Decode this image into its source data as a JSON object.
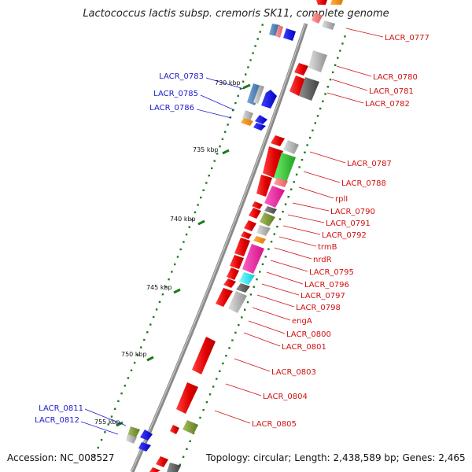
{
  "title": "Lactococcus lactis subsp. cremoris SK11, complete genome",
  "footer": {
    "accession": "Accession: NC_008527",
    "summary": "Topology: circular; Length: 2,438,589 bp; Genes: 2,465"
  },
  "colors": {
    "backbone": "#8a8a8a",
    "tick": "#1a7a1a",
    "forward_label": "#d01010",
    "reverse_label": "#1a1acc"
  },
  "ticks": [
    {
      "label": "730 kbp"
    },
    {
      "label": "735 kbp"
    },
    {
      "label": "740 kbp"
    },
    {
      "label": "745 kbp"
    },
    {
      "label": "750 kbp"
    },
    {
      "label": "755 kbp"
    }
  ],
  "labels_right": [
    "LACR_0777",
    "LACR_0780",
    "LACR_0781",
    "LACR_0782",
    "LACR_0787",
    "LACR_0788",
    "rplI",
    "LACR_0790",
    "LACR_0791",
    "LACR_0792",
    "trmB",
    "nrdR",
    "LACR_0795",
    "LACR_0796",
    "LACR_0797",
    "LACR_0798",
    "engA",
    "LACR_0800",
    "LACR_0801",
    "LACR_0803",
    "LACR_0804",
    "LACR_0805"
  ],
  "labels_left": [
    "LACR_0783",
    "LACR_0785",
    "LACR_0786",
    "LACR_0811",
    "LACR_0812"
  ]
}
